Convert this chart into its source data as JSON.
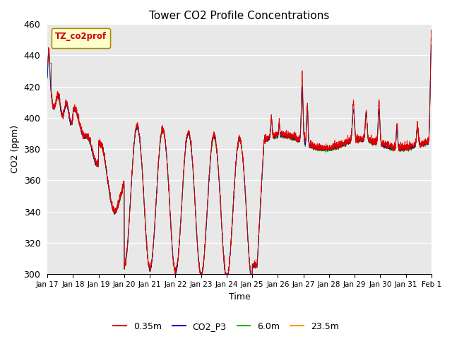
{
  "title": "Tower CO2 Profile Concentrations",
  "xlabel": "Time",
  "ylabel": "CO2 (ppm)",
  "ylim": [
    300,
    460
  ],
  "yticks": [
    300,
    320,
    340,
    360,
    380,
    400,
    420,
    440,
    460
  ],
  "legend_label": "TZ_co2prof",
  "series_labels": [
    "0.35m",
    "CO2_P3",
    "6.0m",
    "23.5m"
  ],
  "series_colors": [
    "#dd0000",
    "#0000cc",
    "#00bb00",
    "#ff9900"
  ],
  "background_color": "#e8e8e8",
  "tick_labels": [
    "Jan 17",
    "Jan 18",
    "Jan 19",
    "Jan 20",
    "Jan 21",
    "Jan 22",
    "Jan 23",
    "Jan 24",
    "Jan 25",
    "Jan 26",
    "Jan 27",
    "Jan 28",
    "Jan 29",
    "Jan 30",
    "Jan 31",
    "Feb 1"
  ],
  "n_points": 3360,
  "figsize": [
    6.4,
    4.8
  ],
  "dpi": 100
}
